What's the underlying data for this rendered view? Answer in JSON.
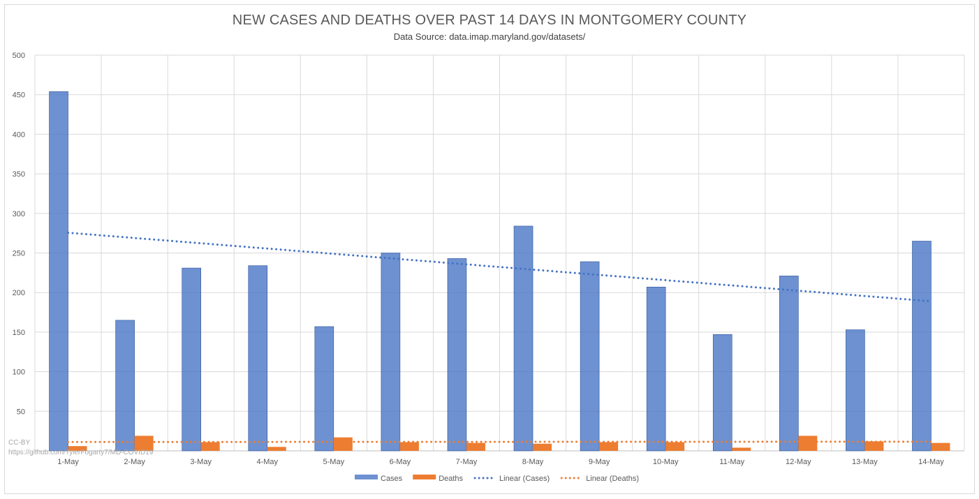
{
  "chart_data": {
    "type": "bar",
    "title": "NEW CASES AND DEATHS OVER PAST 14 DAYS IN MONTGOMERY COUNTY",
    "subtitle": "Data Source: data.imap.maryland.gov/datasets/",
    "categories": [
      "1-May",
      "2-May",
      "3-May",
      "4-May",
      "5-May",
      "6-May",
      "7-May",
      "8-May",
      "9-May",
      "10-May",
      "11-May",
      "12-May",
      "13-May",
      "14-May"
    ],
    "series": [
      {
        "name": "Cases",
        "color": "#4472c4",
        "values": [
          454,
          165,
          231,
          234,
          157,
          250,
          243,
          284,
          239,
          207,
          147,
          221,
          153,
          265
        ]
      },
      {
        "name": "Deaths",
        "color": "#ed7d31",
        "values": [
          6,
          19,
          11,
          5,
          17,
          11,
          10,
          9,
          11,
          11,
          4,
          19,
          12,
          10
        ]
      }
    ],
    "trendlines": [
      {
        "name": "Linear (Cases)",
        "color": "#4472c4",
        "style": "dotted",
        "values": [
          275.6,
          189
        ]
      },
      {
        "name": "Linear (Deaths)",
        "color": "#ed7d31",
        "style": "dotted",
        "values": [
          11.2,
          11.6
        ]
      }
    ],
    "ylim": [
      0,
      500
    ],
    "yticks": [
      50,
      100,
      150,
      200,
      250,
      300,
      350,
      400,
      450,
      500
    ],
    "grid": true,
    "legend_position": "bottom",
    "credit": [
      "CC-BY",
      "https://github.com/TylerFogarty7/MD-COVID19"
    ]
  }
}
